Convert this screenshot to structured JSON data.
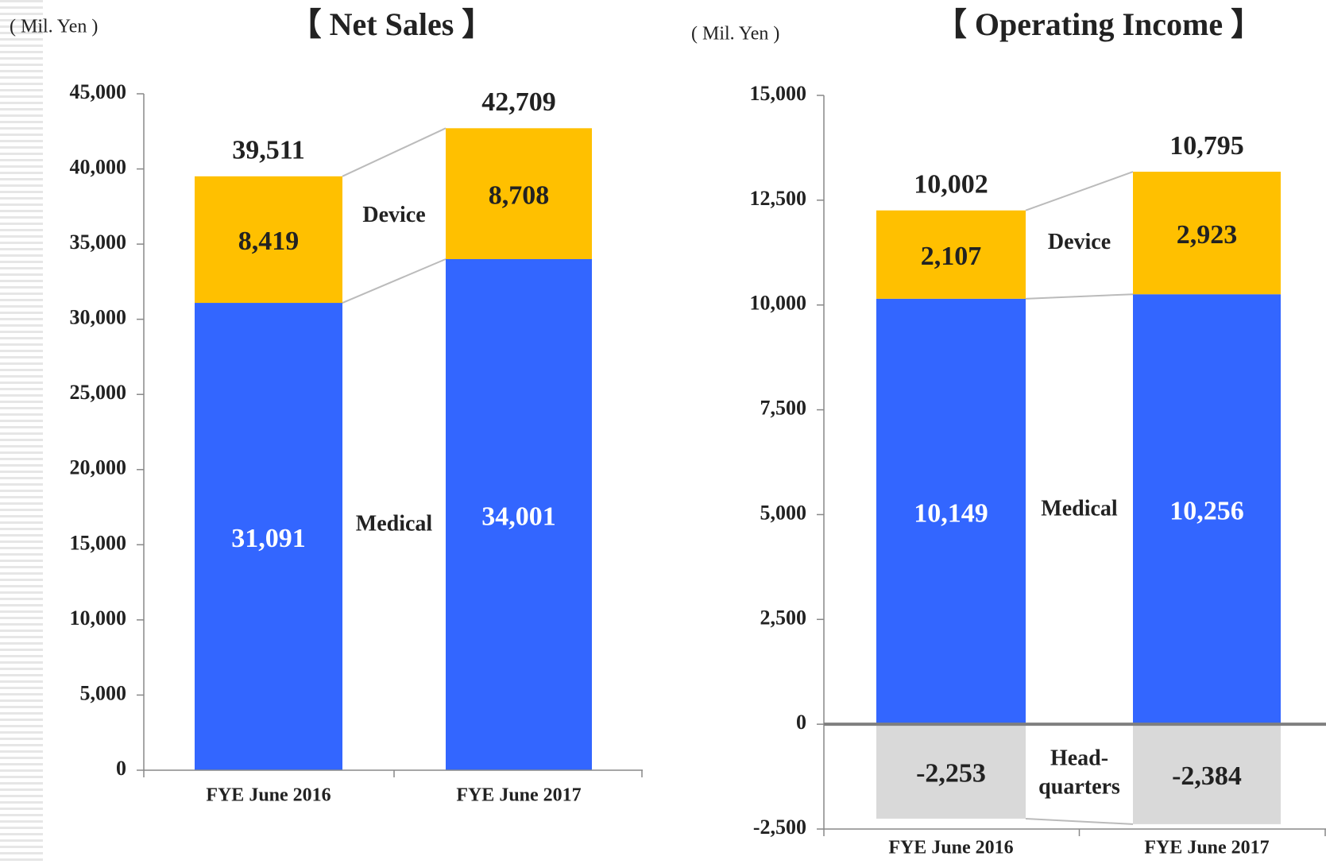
{
  "chart_data": [
    {
      "type": "bar",
      "stacked": true,
      "title": "【 Net Sales 】",
      "unit_label": "( Mil. Yen )",
      "categories": [
        "FYE June 2016",
        "FYE June 2017"
      ],
      "series": [
        {
          "name": "Medical",
          "color": "#3366ff",
          "label_color": "#ffffff",
          "values": [
            31091,
            34001
          ],
          "value_labels": [
            "31,091",
            "34,001"
          ]
        },
        {
          "name": "Device",
          "color": "#ffc000",
          "label_color": "#222222",
          "values": [
            8419,
            8708
          ],
          "value_labels": [
            "8,419",
            "8,708"
          ]
        }
      ],
      "totals": [
        39511,
        42709
      ],
      "total_labels": [
        "39,511",
        "42,709"
      ],
      "ylim": [
        0,
        45000
      ],
      "yticks": [
        0,
        {
          "value": 5000,
          "label": "5,000"
        },
        {
          "value": 10000,
          "label": "10,000"
        },
        {
          "value": 15000,
          "label": "15,000"
        },
        {
          "value": 20000,
          "label": "20,000"
        },
        {
          "value": 25000,
          "label": "25,000"
        },
        {
          "value": 30000,
          "label": "30,000"
        },
        {
          "value": 35000,
          "label": "35,000"
        },
        {
          "value": 40000,
          "label": "40,000"
        },
        {
          "value": 45000,
          "label": "45,000"
        }
      ]
    },
    {
      "type": "bar",
      "stacked": true,
      "title": "【 Operating Income 】",
      "unit_label": "( Mil. Yen )",
      "categories": [
        "FYE June 2016",
        "FYE June 2017"
      ],
      "series": [
        {
          "name": "Medical",
          "color": "#3366ff",
          "label_color": "#ffffff",
          "values": [
            10149,
            10256
          ],
          "value_labels": [
            "10,149",
            "10,256"
          ]
        },
        {
          "name": "Device",
          "color": "#ffc000",
          "label_color": "#222222",
          "values": [
            2107,
            2923
          ],
          "value_labels": [
            "2,107",
            "2,923"
          ]
        },
        {
          "name": "Head-quarters",
          "color": "#d9d9d9",
          "label_color": "#222222",
          "values": [
            -2253,
            -2384
          ],
          "value_labels": [
            "-2,253",
            "-2,384"
          ]
        }
      ],
      "totals": [
        10002,
        10795
      ],
      "total_labels": [
        "10,002",
        "10,795"
      ],
      "ylim": [
        -2500,
        15000
      ],
      "yticks": [
        {
          "value": -2500,
          "label": "-2,500"
        },
        0,
        {
          "value": 2500,
          "label": "2,500"
        },
        {
          "value": 5000,
          "label": "5,000"
        },
        {
          "value": 7500,
          "label": "7,500"
        },
        {
          "value": 10000,
          "label": "10,000"
        },
        {
          "value": 12500,
          "label": "12,500"
        },
        {
          "value": 15000,
          "label": "15,000"
        }
      ]
    }
  ]
}
